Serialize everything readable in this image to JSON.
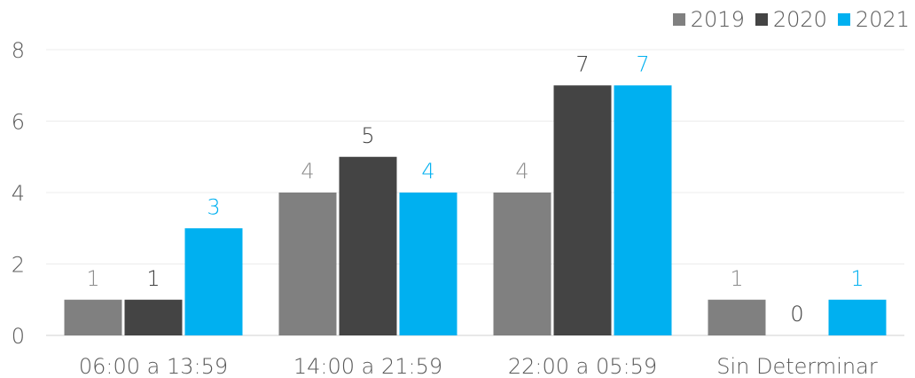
{
  "chart_data": {
    "type": "bar",
    "categories": [
      "06:00 a 13:59",
      "14:00 a 21:59",
      "22:00 a 05:59",
      "Sin Determinar"
    ],
    "series": [
      {
        "name": "2019",
        "values": [
          1,
          4,
          4,
          1
        ],
        "color": "#808080",
        "label_color": "#8c8c8c"
      },
      {
        "name": "2020",
        "values": [
          1,
          5,
          7,
          0
        ],
        "color": "#444444",
        "label_color": "#404040"
      },
      {
        "name": "2021",
        "values": [
          3,
          4,
          7,
          1
        ],
        "color": "#00b0f0",
        "label_color": "#00b0f0"
      }
    ],
    "ylim": [
      0,
      8
    ],
    "yticks": [
      0,
      2,
      4,
      6,
      8
    ],
    "grid": true,
    "legend": "top-right"
  }
}
